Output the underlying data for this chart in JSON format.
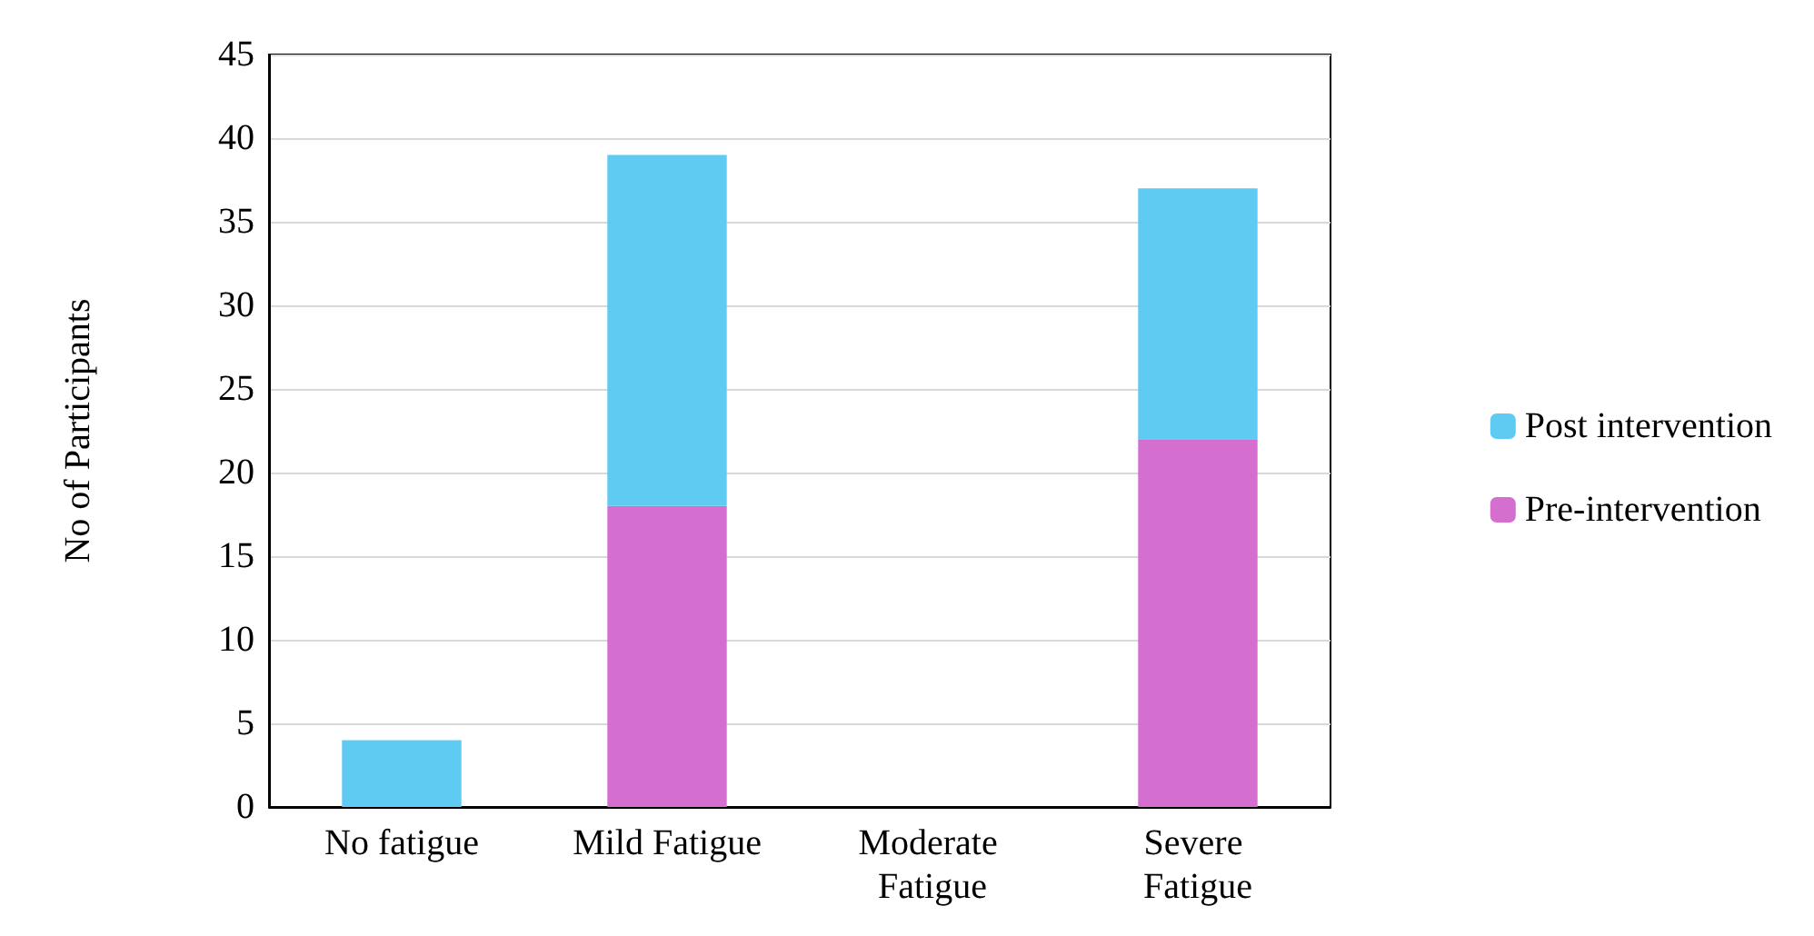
{
  "chart_data": {
    "type": "bar",
    "stacked": true,
    "ylabel": "No of Participants",
    "categories": [
      "No fatigue",
      "Mild Fatigue",
      "Moderate Fatigue",
      "Severe Fatigue"
    ],
    "series": [
      {
        "name": "Pre-intervention",
        "color": "#d46fcf",
        "values": [
          0,
          18,
          0,
          22
        ]
      },
      {
        "name": "Post intervention",
        "color": "#5fcbf3",
        "values": [
          4,
          21,
          0,
          15
        ]
      }
    ],
    "ylim": [
      0,
      45
    ],
    "yticks": [
      0,
      5,
      10,
      15,
      20,
      25,
      30,
      35,
      40,
      45
    ],
    "grid": "y",
    "legend": "right"
  }
}
